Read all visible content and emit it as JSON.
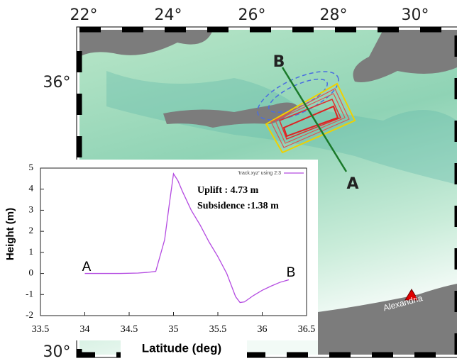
{
  "map": {
    "lon_ticks": [
      "22°",
      "24°",
      "26°",
      "28°",
      "30°"
    ],
    "lat_ticks": [
      "36°",
      "30°"
    ],
    "point_a": "A",
    "point_b": "B",
    "city": "Alexandria"
  },
  "chart_data": {
    "type": "line",
    "x_label": "Latitude (deg)",
    "y_label": "Height (m)",
    "x": [
      34,
      34.2,
      34.4,
      34.6,
      34.7,
      34.8,
      34.9,
      34.95,
      35.0,
      35.05,
      35.1,
      35.2,
      35.3,
      35.4,
      35.5,
      35.6,
      35.7,
      35.75,
      35.8,
      35.9,
      36.0,
      36.1,
      36.2,
      36.3
    ],
    "series": [
      {
        "name": "'track.xyz' using 2:3",
        "color": "#b44be1",
        "values": [
          0,
          0,
          0,
          0.02,
          0.05,
          0.1,
          1.6,
          3.2,
          4.73,
          4.4,
          3.9,
          3.0,
          2.3,
          1.5,
          0.8,
          0.0,
          -1.1,
          -1.38,
          -1.35,
          -1.05,
          -0.8,
          -0.6,
          -0.42,
          -0.3
        ]
      }
    ],
    "xlim": [
      33.5,
      36.5
    ],
    "xticks": [
      33.5,
      34,
      34.5,
      35,
      35.5,
      36,
      36.5
    ],
    "ylim": [
      -2,
      5
    ],
    "yticks": [
      -2,
      -1,
      0,
      1,
      2,
      3,
      4,
      5
    ],
    "annotations": [
      "Uplift : 4.73 m",
      "Subsidence :1.38 m",
      "A",
      "B"
    ]
  }
}
